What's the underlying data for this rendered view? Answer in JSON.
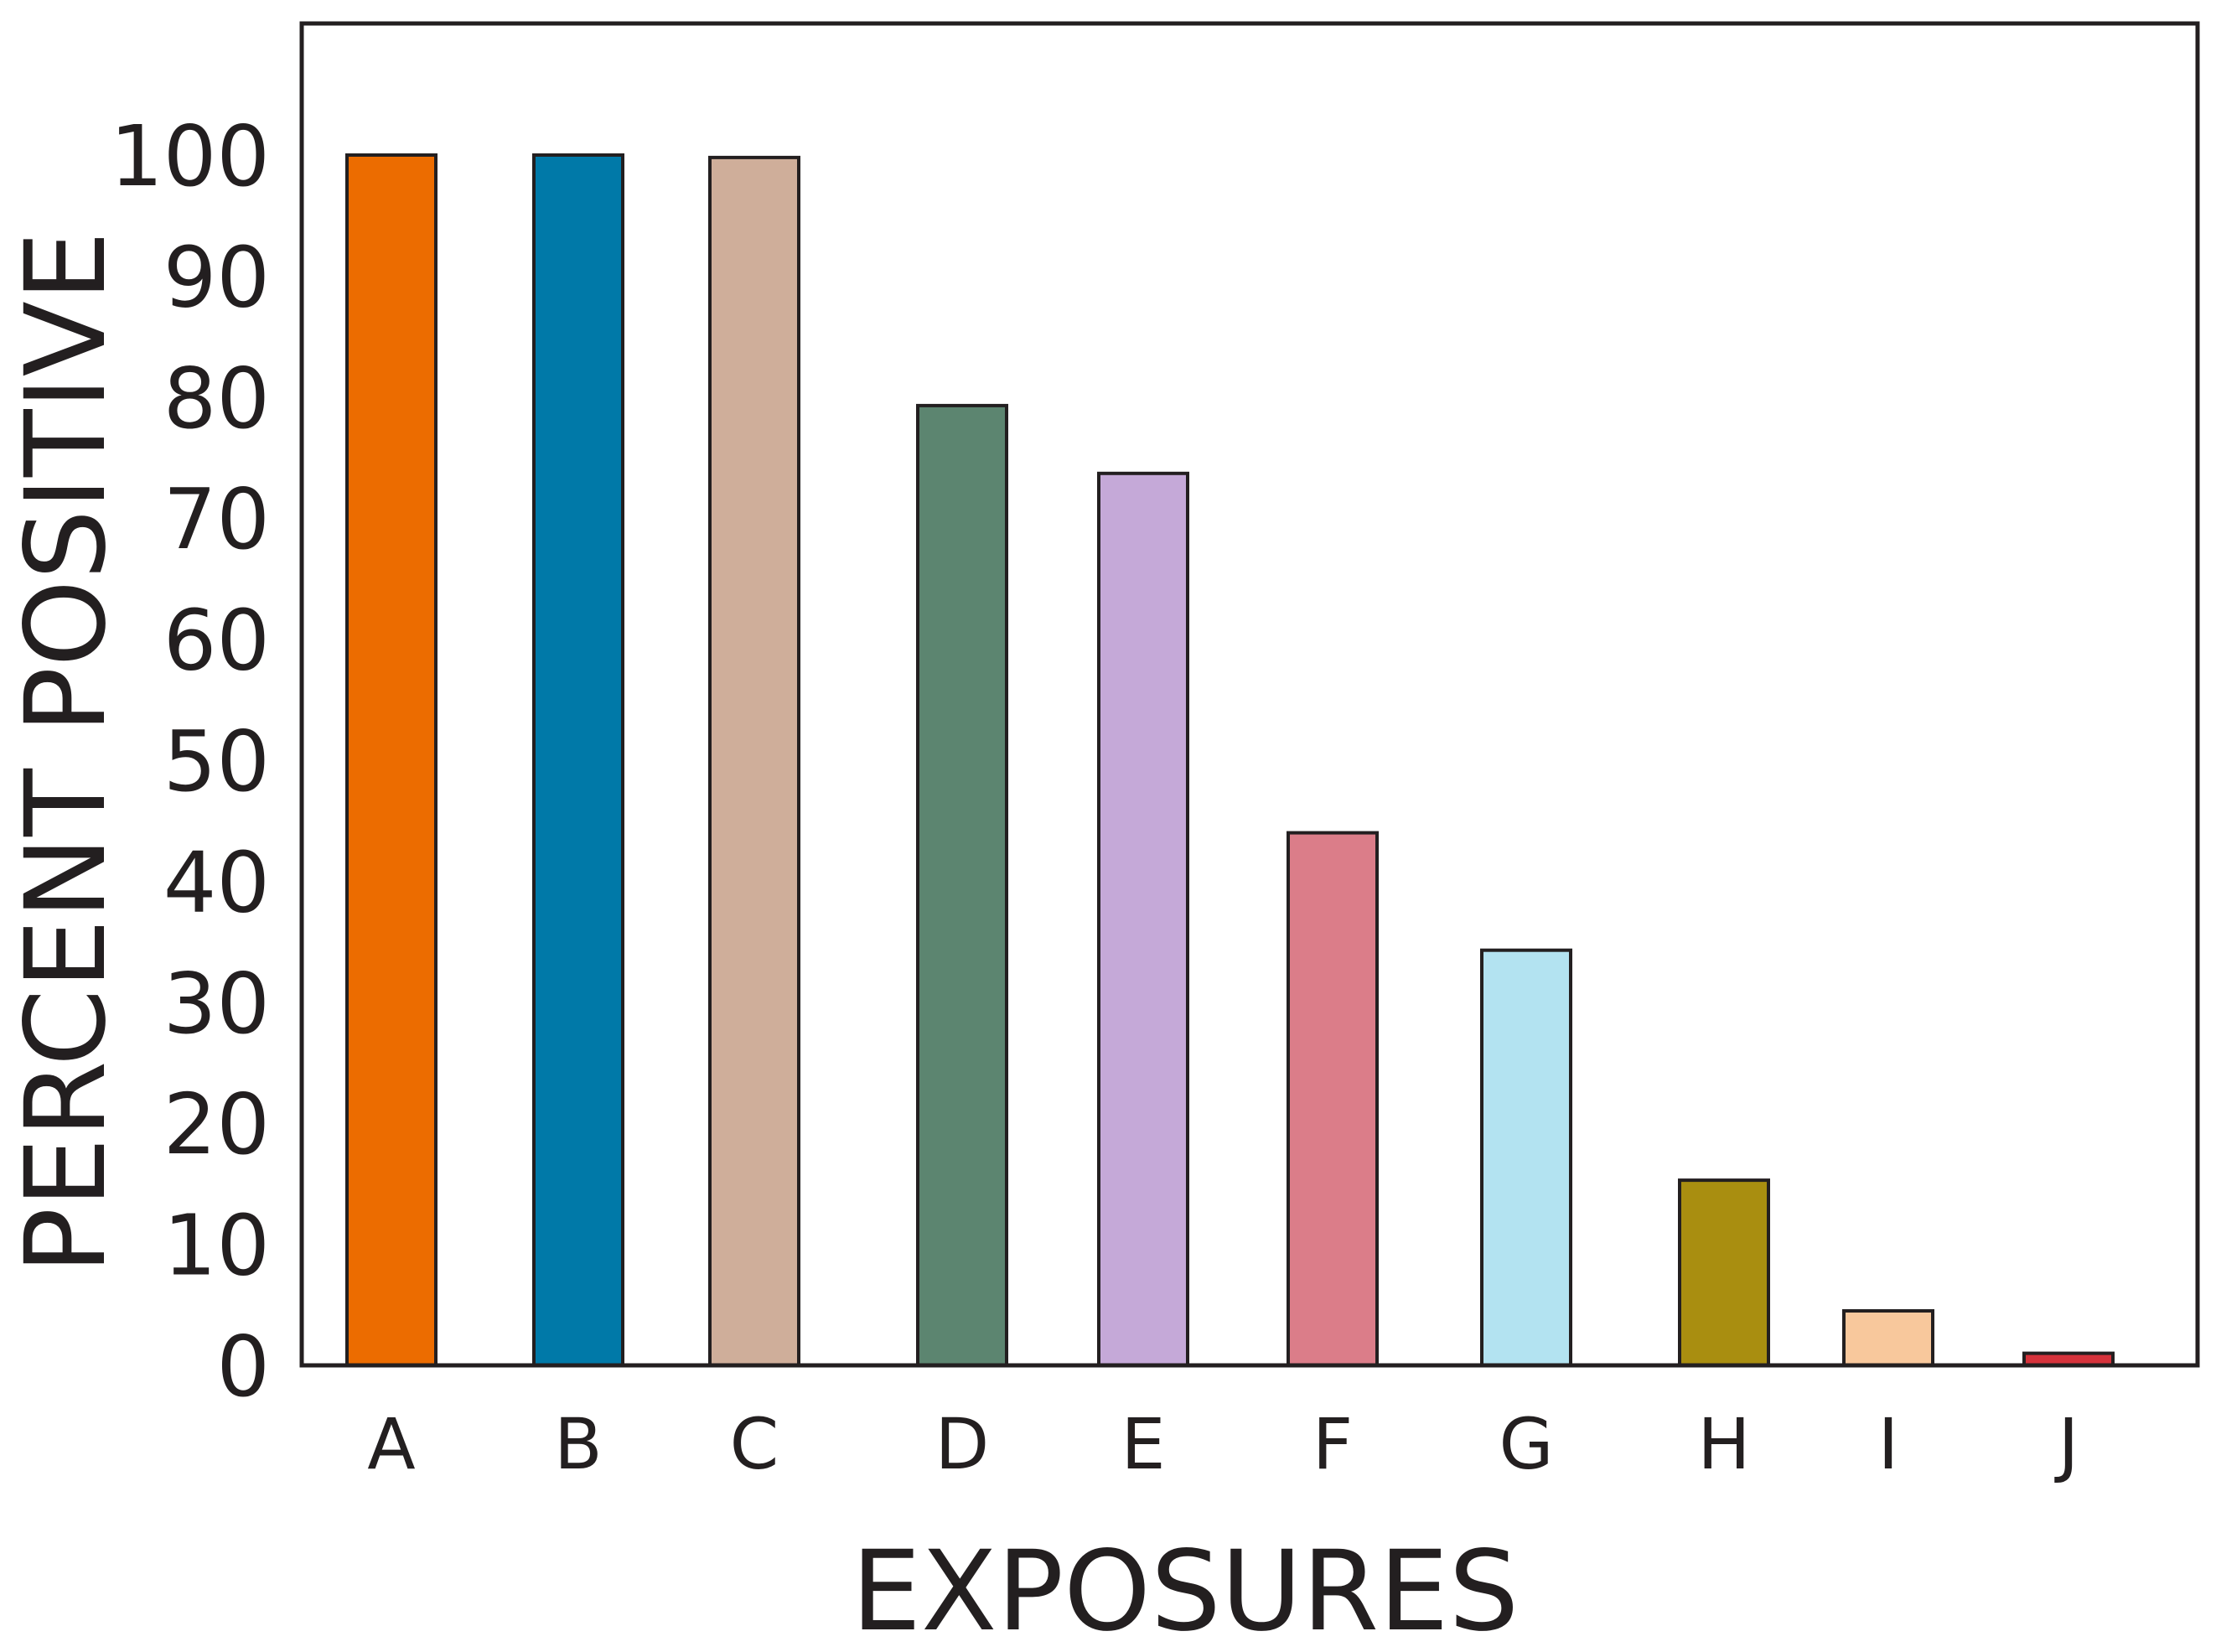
{
  "chart_data": {
    "type": "bar",
    "categories": [
      "A",
      "B",
      "C",
      "D",
      "E",
      "F",
      "G",
      "H",
      "I",
      "J"
    ],
    "values": [
      100,
      100,
      99.8,
      79.3,
      73.7,
      44,
      34.3,
      15.3,
      4.5,
      1
    ],
    "colors": [
      "#ec6c00",
      "#0079a8",
      "#cfae9a",
      "#5c8570",
      "#c5a9d8",
      "#db7d89",
      "#b3e3f1",
      "#a98e10",
      "#f8c89c",
      "#d6323b"
    ],
    "title": "",
    "xlabel": "EXPOSURES",
    "ylabel": "PERCENT POSITIVE",
    "ylim": [
      0,
      110
    ],
    "yticks": [
      0,
      10,
      20,
      30,
      40,
      50,
      60,
      70,
      80,
      90,
      100
    ],
    "ytick_labels": [
      "0",
      "10",
      "20",
      "30",
      "40",
      "50",
      "60",
      "70",
      "80",
      "90",
      "100"
    ],
    "grid": false,
    "legend": "none"
  }
}
